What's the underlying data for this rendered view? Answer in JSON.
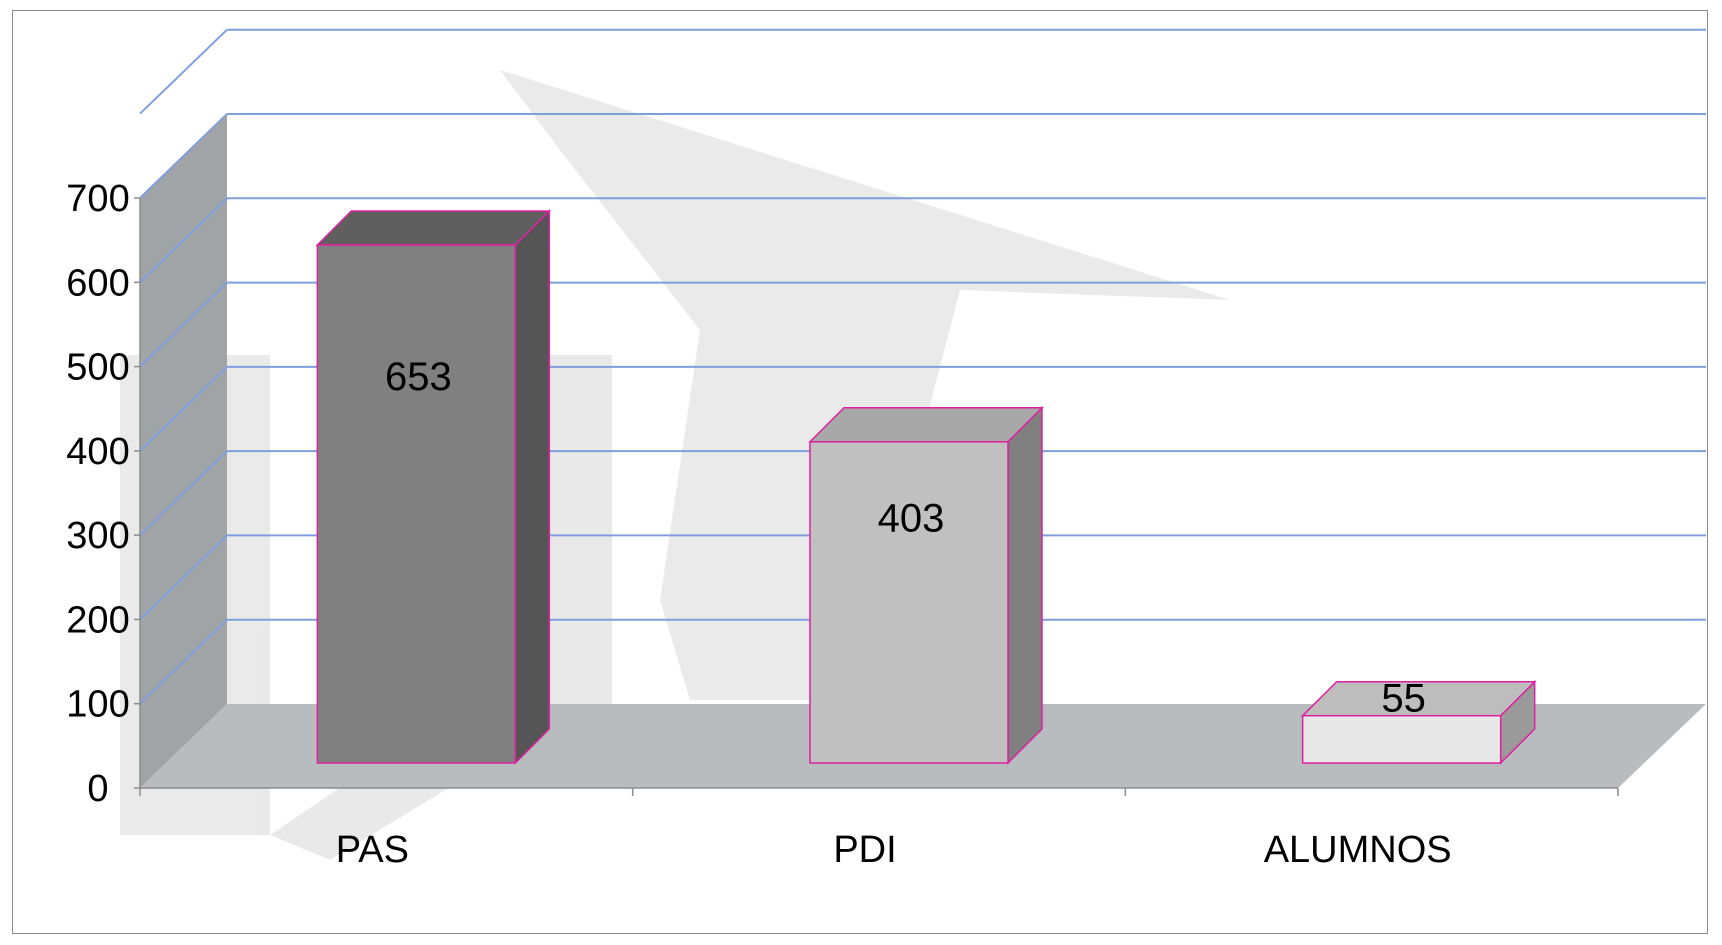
{
  "chart_data": {
    "type": "bar",
    "categories": [
      "PAS",
      "PDI",
      "ALUMNOS"
    ],
    "values": [
      653,
      403,
      55
    ],
    "title": "",
    "xlabel": "",
    "ylabel": "",
    "ylim": [
      0,
      700
    ],
    "yticks": [
      "0",
      "100",
      "200",
      "300",
      "400",
      "500",
      "600",
      "700"
    ],
    "data_labels": [
      "653",
      "403",
      "55"
    ],
    "grid": true,
    "legend": "none",
    "colors": {
      "bars": [
        "#808080",
        "#c0c0c0",
        "#e8e8e8"
      ],
      "bar_tops": [
        "#5f5f5f",
        "#a8a8a8",
        "#bdbdbd"
      ],
      "bar_sides": [
        "#555555",
        "#808080",
        "#9a9a9a"
      ],
      "bar_outline": "#e020a0",
      "gridline": "#7f9fdc",
      "floor": "#b8bcbe",
      "wall": "#a0a4a6"
    }
  }
}
